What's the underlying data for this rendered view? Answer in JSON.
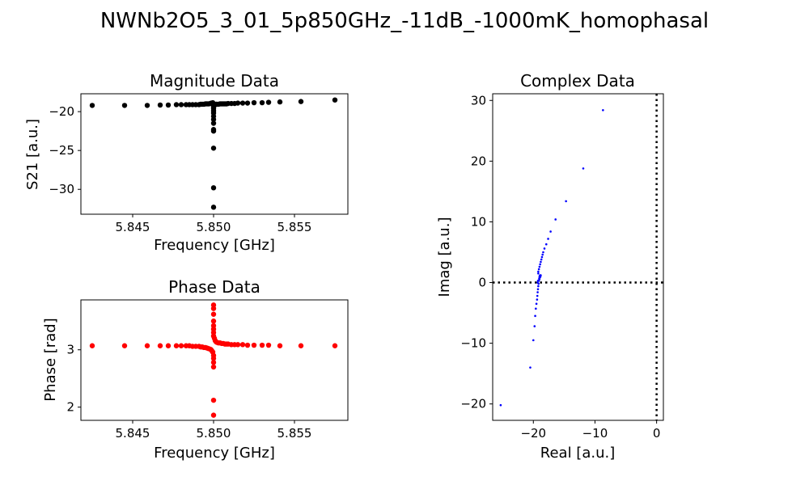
{
  "title": "NWNb2O5_3_01_5p850GHz_-11dB_-1000mK_homophasal",
  "chart_data": [
    {
      "id": "magnitude",
      "type": "scatter",
      "title": "Magnitude Data",
      "xlabel": "Frequency [GHz]",
      "ylabel": "S21 [a.u.]",
      "xlim": [
        5.8418,
        5.8583
      ],
      "ylim": [
        -33.2,
        -17.7
      ],
      "xticks": [
        5.845,
        5.85,
        5.855
      ],
      "xtick_labels": [
        "5.845",
        "5.850",
        "5.855"
      ],
      "yticks": [
        -20,
        -25,
        -30
      ],
      "ytick_labels": [
        "−20",
        "−25",
        "−30"
      ],
      "color": "#000000",
      "x": [
        5.8425,
        5.8445,
        5.8459,
        5.8467,
        5.8472,
        5.8477,
        5.848,
        5.8483,
        5.8485,
        5.8487,
        5.8489,
        5.8491,
        5.8492,
        5.8493,
        5.8494,
        5.8495,
        5.8496,
        5.8497,
        5.8498,
        5.84985,
        5.8499,
        5.84995,
        5.85,
        5.85,
        5.85,
        5.85,
        5.85,
        5.85,
        5.85,
        5.85,
        5.85,
        5.85,
        5.85,
        5.85,
        5.85,
        5.85005,
        5.8501,
        5.85015,
        5.8502,
        5.8503,
        5.8504,
        5.8505,
        5.8506,
        5.8507,
        5.8508,
        5.8509,
        5.8511,
        5.8513,
        5.8515,
        5.8518,
        5.8521,
        5.8525,
        5.853,
        5.8534,
        5.8541,
        5.8554,
        5.8575
      ],
      "y": [
        -19.2,
        -19.2,
        -19.2,
        -19.15,
        -19.15,
        -19.1,
        -19.1,
        -19.1,
        -19.1,
        -19.1,
        -19.1,
        -19.1,
        -19.05,
        -19.05,
        -19.05,
        -19.0,
        -19.0,
        -19.0,
        -18.95,
        -18.9,
        -18.9,
        -18.85,
        -19.3,
        -19.6,
        -19.9,
        -20.2,
        -20.6,
        -21.0,
        -21.5,
        -22.3,
        -22.5,
        -24.7,
        -29.8,
        -32.3,
        -19.4,
        -19.1,
        -19.1,
        -19.05,
        -19.05,
        -19.05,
        -19.0,
        -19.0,
        -19.0,
        -19.0,
        -19.0,
        -18.95,
        -18.95,
        -18.95,
        -18.9,
        -18.9,
        -18.9,
        -18.85,
        -18.85,
        -18.8,
        -18.75,
        -18.7,
        -18.5
      ]
    },
    {
      "id": "phase",
      "type": "scatter",
      "title": "Phase Data",
      "xlabel": "Frequency [GHz]",
      "ylabel": "Phase [rad]",
      "xlim": [
        5.8418,
        5.8583
      ],
      "ylim": [
        1.77,
        3.87
      ],
      "xticks": [
        5.845,
        5.85,
        5.855
      ],
      "xtick_labels": [
        "5.845",
        "5.850",
        "5.855"
      ],
      "yticks": [
        2,
        3
      ],
      "ytick_labels": [
        "2",
        "3"
      ],
      "color": "#ff0000",
      "x": [
        5.8425,
        5.8445,
        5.8459,
        5.8467,
        5.8472,
        5.8477,
        5.848,
        5.8483,
        5.8485,
        5.8487,
        5.8489,
        5.8491,
        5.8492,
        5.8493,
        5.8494,
        5.8495,
        5.8496,
        5.8497,
        5.8498,
        5.84985,
        5.8499,
        5.84995,
        5.85,
        5.85,
        5.85,
        5.85,
        5.85,
        5.85,
        5.85,
        5.85,
        5.85,
        5.85,
        5.85,
        5.85,
        5.85,
        5.85,
        5.85005,
        5.8501,
        5.85015,
        5.8502,
        5.8503,
        5.8504,
        5.8505,
        5.8506,
        5.8507,
        5.8508,
        5.8509,
        5.8511,
        5.8513,
        5.8515,
        5.8518,
        5.8521,
        5.8525,
        5.853,
        5.8534,
        5.8541,
        5.8554,
        5.8575
      ],
      "y": [
        3.07,
        3.07,
        3.07,
        3.07,
        3.07,
        3.07,
        3.07,
        3.07,
        3.07,
        3.06,
        3.06,
        3.06,
        3.05,
        3.05,
        3.04,
        3.04,
        3.03,
        3.02,
        3.01,
        3.0,
        2.98,
        2.96,
        3.78,
        3.72,
        3.62,
        3.5,
        3.42,
        3.36,
        3.3,
        3.24,
        2.9,
        2.85,
        2.78,
        2.7,
        2.12,
        1.86,
        3.2,
        3.16,
        3.14,
        3.13,
        3.12,
        3.12,
        3.11,
        3.11,
        3.1,
        3.1,
        3.1,
        3.09,
        3.09,
        3.09,
        3.09,
        3.08,
        3.08,
        3.08,
        3.08,
        3.07,
        3.07,
        3.07
      ]
    },
    {
      "id": "complex",
      "type": "scatter",
      "title": "Complex Data",
      "xlabel": "Real [a.u.]",
      "ylabel": "Imag [a.u.]",
      "xlim": [
        -26.6,
        1.1
      ],
      "ylim": [
        -22.7,
        31.1
      ],
      "xticks": [
        -20,
        -10,
        0
      ],
      "xtick_labels": [
        "−20",
        "−10",
        "0"
      ],
      "yticks": [
        30,
        20,
        10,
        0,
        -10,
        -20
      ],
      "ytick_labels": [
        "30",
        "20",
        "10",
        "0",
        "−10",
        "−20"
      ],
      "color": "#0000ff",
      "reference_lines": [
        {
          "axis": "y",
          "value": 0
        },
        {
          "axis": "x",
          "value": 0
        }
      ],
      "x": [
        -25.3,
        -20.5,
        -20.0,
        -19.8,
        -19.7,
        -19.6,
        -19.5,
        -19.4,
        -19.35,
        -19.3,
        -19.25,
        -19.2,
        -19.15,
        -19.1,
        -19.05,
        -19.0,
        -18.95,
        -18.9,
        -18.85,
        -18.8,
        -18.9,
        -19.0,
        -19.1,
        -19.2,
        -19.25,
        -19.3,
        -19.2,
        -19.1,
        -19.0,
        -18.9,
        -18.8,
        -18.7,
        -18.6,
        -18.5,
        -18.4,
        -18.2,
        -17.9,
        -17.6,
        -17.2,
        -16.4,
        -14.7,
        -11.9,
        -8.7
      ],
      "y": [
        -20.2,
        -14.0,
        -9.5,
        -7.2,
        -5.5,
        -4.3,
        -3.5,
        -2.8,
        -2.2,
        -1.6,
        -1.1,
        -0.6,
        -0.2,
        0.3,
        0.7,
        1.0,
        1.1,
        1.2,
        1.0,
        1.2,
        0.9,
        0.6,
        0.4,
        1.5,
        0.3,
        0.0,
        1.8,
        2.2,
        2.6,
        3.0,
        3.4,
        3.8,
        4.2,
        4.6,
        5.0,
        5.6,
        6.3,
        7.2,
        8.4,
        10.4,
        13.4,
        18.8,
        28.4
      ]
    }
  ]
}
